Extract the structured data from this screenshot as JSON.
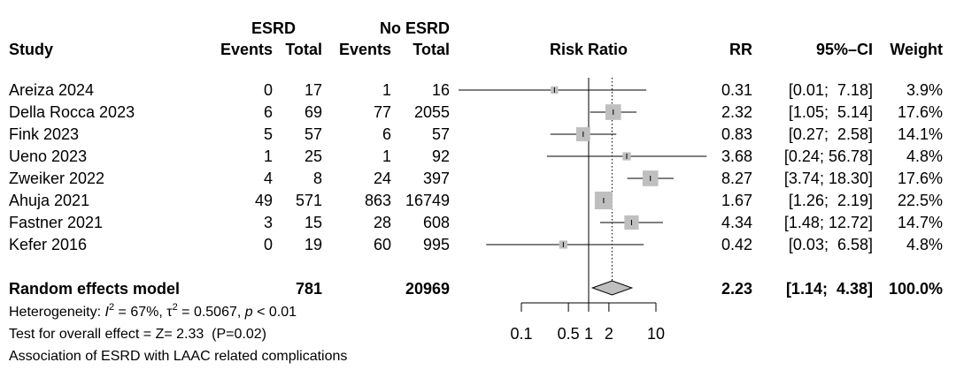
{
  "headers": {
    "esrd": "ESRD",
    "no_esrd": "No ESRD",
    "study": "Study",
    "events": "Events",
    "total": "Total",
    "events2": "Events",
    "total2": "Total",
    "risk_ratio": "Risk Ratio",
    "rr": "RR",
    "ci": "95%–CI",
    "weight": "Weight"
  },
  "studies": [
    {
      "name": "Areiza 2024",
      "esrd_events": "0",
      "esrd_total": "17",
      "no_events": "1",
      "no_total": "16",
      "rr_text": "0.31",
      "ci_text": "[0.01;  7.18]",
      "weight_text": "3.9%",
      "rr": 0.31,
      "lower": 0.01,
      "upper": 7.18,
      "weight": 3.9
    },
    {
      "name": "Della Rocca 2023",
      "esrd_events": "6",
      "esrd_total": "69",
      "no_events": "77",
      "no_total": "2055",
      "rr_text": "2.32",
      "ci_text": "[1.05;  5.14]",
      "weight_text": "17.6%",
      "rr": 2.32,
      "lower": 1.05,
      "upper": 5.14,
      "weight": 17.6
    },
    {
      "name": "Fink 2023",
      "esrd_events": "5",
      "esrd_total": "57",
      "no_events": "6",
      "no_total": "57",
      "rr_text": "0.83",
      "ci_text": "[0.27;  2.58]",
      "weight_text": "14.1%",
      "rr": 0.83,
      "lower": 0.27,
      "upper": 2.58,
      "weight": 14.1
    },
    {
      "name": "Ueno 2023",
      "esrd_events": "1",
      "esrd_total": "25",
      "no_events": "1",
      "no_total": "92",
      "rr_text": "3.68",
      "ci_text": "[0.24; 56.78]",
      "weight_text": "4.8%",
      "rr": 3.68,
      "lower": 0.24,
      "upper": 56.78,
      "weight": 4.8
    },
    {
      "name": "Zweiker 2022",
      "esrd_events": "4",
      "esrd_total": "8",
      "no_events": "24",
      "no_total": "397",
      "rr_text": "8.27",
      "ci_text": "[3.74; 18.30]",
      "weight_text": "17.6%",
      "rr": 8.27,
      "lower": 3.74,
      "upper": 18.3,
      "weight": 17.6
    },
    {
      "name": "Ahuja 2021",
      "esrd_events": "49",
      "esrd_total": "571",
      "no_events": "863",
      "no_total": "16749",
      "rr_text": "1.67",
      "ci_text": "[1.26;  2.19]",
      "weight_text": "22.5%",
      "rr": 1.67,
      "lower": 1.26,
      "upper": 2.19,
      "weight": 22.5
    },
    {
      "name": "Fastner 2021",
      "esrd_events": "3",
      "esrd_total": "15",
      "no_events": "28",
      "no_total": "608",
      "rr_text": "4.34",
      "ci_text": "[1.48; 12.72]",
      "weight_text": "14.7%",
      "rr": 4.34,
      "lower": 1.48,
      "upper": 12.72,
      "weight": 14.7
    },
    {
      "name": "Kefer 2016",
      "esrd_events": "0",
      "esrd_total": "19",
      "no_events": "60",
      "no_total": "995",
      "rr_text": "0.42",
      "ci_text": "[0.03;  6.58]",
      "weight_text": "4.8%",
      "rr": 0.42,
      "lower": 0.03,
      "upper": 6.58,
      "weight": 4.8
    }
  ],
  "pooled": {
    "label": "Random effects model",
    "esrd_total": "781",
    "no_total": "20969",
    "rr_text": "2.23",
    "ci_text": "[1.14;  4.38]",
    "weight_text": "100.0%",
    "rr": 2.23,
    "lower": 1.14,
    "upper": 4.38
  },
  "footer": {
    "heterogeneity_prefix": "Heterogeneity: ",
    "i2_symbol": "I",
    "i2_sup": "2",
    "i2_value": " = 67%, ",
    "tau_symbol": "τ",
    "tau_sup": "2",
    "tau_value": " = 0.5067, ",
    "p_symbol": "p",
    "p_value": " < 0.01",
    "test": "Test for overall effect = Z= 2.33  (P=0.02)",
    "caption": "Association of ESRD with LAAC related complications"
  },
  "axis": {
    "ticks": [
      0.1,
      0.5,
      1,
      2,
      10
    ],
    "tick_labels": [
      "0.1",
      "0.5",
      "1",
      "2",
      "10"
    ],
    "null_value": 1,
    "scale": "log"
  },
  "colors": {
    "box": "#bfbfbf",
    "line": "#000000",
    "diamond": "#bfbfbf"
  },
  "chart_data": {
    "type": "forest",
    "scale": "log",
    "xticks": [
      0.1,
      0.5,
      1,
      2,
      10
    ],
    "reference_line": 1,
    "pooled_line": 2.23,
    "studies": [
      {
        "name": "Areiza 2024",
        "rr": 0.31,
        "lower": 0.01,
        "upper": 7.18,
        "weight": 3.9
      },
      {
        "name": "Della Rocca 2023",
        "rr": 2.32,
        "lower": 1.05,
        "upper": 5.14,
        "weight": 17.6
      },
      {
        "name": "Fink 2023",
        "rr": 0.83,
        "lower": 0.27,
        "upper": 2.58,
        "weight": 14.1
      },
      {
        "name": "Ueno 2023",
        "rr": 3.68,
        "lower": 0.24,
        "upper": 56.78,
        "weight": 4.8
      },
      {
        "name": "Zweiker 2022",
        "rr": 8.27,
        "lower": 3.74,
        "upper": 18.3,
        "weight": 17.6
      },
      {
        "name": "Ahuja 2021",
        "rr": 1.67,
        "lower": 1.26,
        "upper": 2.19,
        "weight": 22.5
      },
      {
        "name": "Fastner 2021",
        "rr": 4.34,
        "lower": 1.48,
        "upper": 12.72,
        "weight": 14.7
      },
      {
        "name": "Kefer 2016",
        "rr": 0.42,
        "lower": 0.03,
        "upper": 6.58,
        "weight": 4.8
      }
    ],
    "pooled": {
      "name": "Random effects model",
      "rr": 2.23,
      "lower": 1.14,
      "upper": 4.38,
      "weight": 100.0
    }
  }
}
